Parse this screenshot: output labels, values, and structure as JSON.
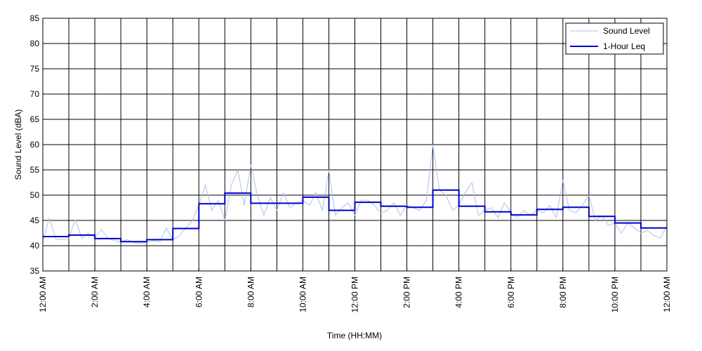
{
  "chart_data": {
    "type": "line",
    "xlabel": "Time (HH:MM)",
    "ylabel": "Sound Level (dBA)",
    "ylim": [
      35,
      85
    ],
    "yticks": [
      35,
      40,
      45,
      50,
      55,
      60,
      65,
      70,
      75,
      80,
      85
    ],
    "xlim_hours": [
      0,
      24
    ],
    "xtick_labels": [
      {
        "hour": 0,
        "label": "12:00 AM"
      },
      {
        "hour": 2,
        "label": "2:00 AM"
      },
      {
        "hour": 4,
        "label": "4:00 AM"
      },
      {
        "hour": 6,
        "label": "6:00 AM"
      },
      {
        "hour": 8,
        "label": "8:00 AM"
      },
      {
        "hour": 10,
        "label": "10:00 AM"
      },
      {
        "hour": 12,
        "label": "12:00 PM"
      },
      {
        "hour": 14,
        "label": "2:00 PM"
      },
      {
        "hour": 16,
        "label": "4:00 PM"
      },
      {
        "hour": 18,
        "label": "6:00 PM"
      },
      {
        "hour": 20,
        "label": "8:00 PM"
      },
      {
        "hour": 22,
        "label": "10:00 PM"
      },
      {
        "hour": 24,
        "label": "12:00 AM"
      }
    ],
    "grid": {
      "horizontal": true,
      "vertical": true
    },
    "legend": {
      "position": "top-right"
    },
    "series": [
      {
        "name": "Sound Level",
        "color": "#a9c1ee",
        "style": "thin-line",
        "x": [
          0.0,
          0.25,
          0.5,
          0.75,
          1.0,
          1.25,
          1.5,
          1.75,
          2.0,
          2.25,
          2.5,
          2.75,
          3.0,
          3.25,
          3.5,
          3.75,
          4.0,
          4.25,
          4.5,
          4.75,
          5.0,
          5.25,
          5.5,
          5.75,
          6.0,
          6.25,
          6.5,
          6.75,
          7.0,
          7.25,
          7.5,
          7.75,
          8.0,
          8.25,
          8.5,
          8.75,
          9.0,
          9.25,
          9.5,
          9.75,
          10.0,
          10.25,
          10.5,
          10.75,
          11.0,
          11.25,
          11.5,
          11.75,
          12.0,
          12.25,
          12.5,
          12.75,
          13.0,
          13.25,
          13.5,
          13.75,
          14.0,
          14.25,
          14.5,
          14.75,
          15.0,
          15.25,
          15.5,
          15.75,
          16.0,
          16.25,
          16.5,
          16.75,
          17.0,
          17.25,
          17.5,
          17.75,
          18.0,
          18.25,
          18.5,
          18.75,
          19.0,
          19.25,
          19.5,
          19.75,
          20.0,
          20.25,
          20.5,
          20.75,
          21.0,
          21.25,
          21.5,
          21.75,
          22.0,
          22.25,
          22.5,
          22.75,
          23.0,
          23.25,
          23.5,
          23.75,
          24.0
        ],
        "y": [
          41.0,
          45.5,
          41.3,
          41.2,
          41.5,
          45.2,
          41.4,
          42.5,
          41.6,
          43.2,
          41.5,
          41.0,
          40.8,
          41.2,
          40.6,
          40.5,
          40.6,
          41.0,
          40.8,
          43.5,
          41.2,
          42.0,
          43.5,
          45.0,
          48.0,
          52.0,
          47.0,
          49.0,
          45.0,
          52.0,
          55.0,
          48.0,
          56.0,
          50.0,
          46.0,
          49.5,
          47.0,
          50.5,
          47.5,
          48.5,
          49.0,
          48.0,
          50.5,
          47.0,
          55.0,
          46.0,
          47.5,
          48.5,
          46.0,
          49.0,
          49.0,
          48.0,
          46.5,
          47.0,
          48.5,
          46.0,
          48.0,
          47.5,
          47.0,
          49.0,
          60.0,
          51.0,
          50.0,
          47.0,
          48.0,
          50.5,
          52.5,
          46.0,
          47.0,
          47.5,
          45.5,
          48.5,
          46.5,
          45.5,
          47.0,
          46.0,
          47.0,
          46.5,
          48.0,
          45.5,
          53.0,
          47.0,
          46.5,
          48.0,
          50.0,
          45.0,
          46.0,
          44.0,
          44.5,
          42.5,
          44.5,
          43.5,
          42.5,
          43.0,
          42.0,
          41.5,
          44.0
        ]
      },
      {
        "name": "1-Hour Leq",
        "color": "#0000cc",
        "style": "step",
        "hours": [
          0,
          1,
          2,
          3,
          4,
          5,
          6,
          7,
          8,
          9,
          10,
          11,
          12,
          13,
          14,
          15,
          16,
          17,
          18,
          19,
          20,
          21,
          22,
          23
        ],
        "values": [
          41.8,
          42.1,
          41.4,
          40.8,
          41.2,
          43.4,
          48.3,
          50.4,
          48.4,
          48.4,
          49.6,
          47.0,
          48.6,
          47.8,
          47.6,
          51.0,
          47.8,
          46.7,
          46.1,
          47.2,
          47.6,
          45.8,
          44.5,
          43.5
        ]
      }
    ]
  }
}
